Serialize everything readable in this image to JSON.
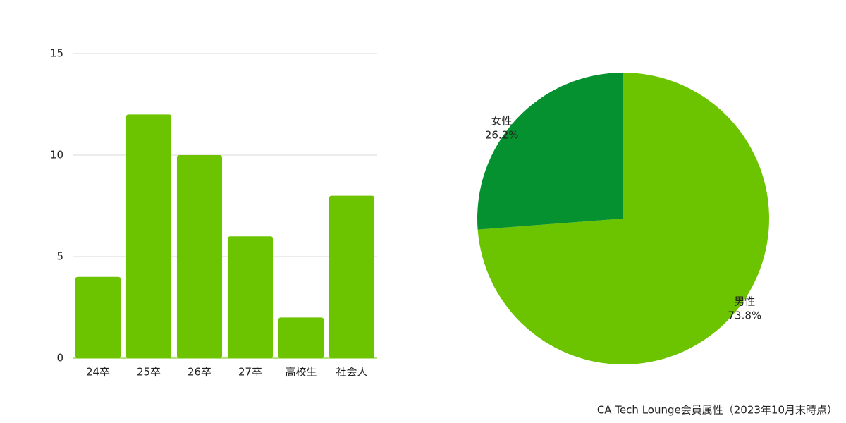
{
  "chart_data": [
    {
      "type": "bar",
      "categories": [
        "24卒",
        "25卒",
        "26卒",
        "27卒",
        "高校生",
        "社会人"
      ],
      "values": [
        4,
        12,
        10,
        6,
        2,
        8
      ],
      "color": "#6cc400",
      "ylim": [
        0,
        15
      ],
      "yticks": [
        0,
        5,
        10,
        15
      ],
      "grid": true
    },
    {
      "type": "pie",
      "categories": [
        "男性",
        "女性"
      ],
      "values": [
        73.8,
        26.2
      ],
      "value_labels": [
        "73.8%",
        "26.2%"
      ],
      "colors": [
        "#6cc400",
        "#059130"
      ]
    }
  ],
  "caption": "CA Tech Lounge会員属性（2023年10月末時点）"
}
